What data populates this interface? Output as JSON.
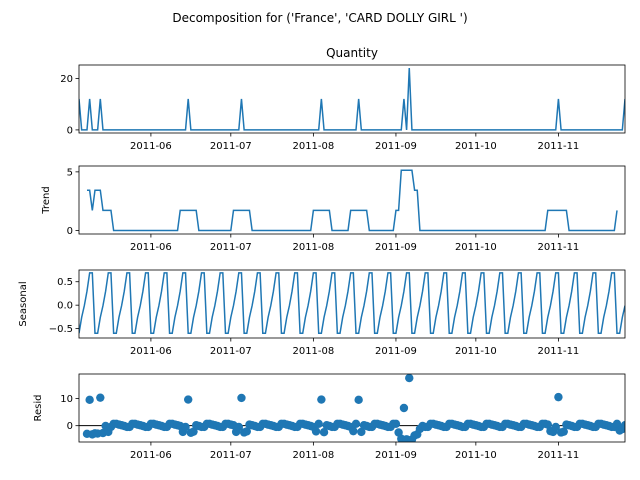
{
  "figure": {
    "suptitle": "Decomposition for ('France', 'CARD DOLLY GIRL ')"
  },
  "chart_data": [
    {
      "type": "line",
      "title": "Quantity",
      "ylabel": "",
      "xlim": [
        "2011-05-05",
        "2011-11-26"
      ],
      "ylim": [
        -1.2,
        25.2
      ],
      "xticks": [
        "2011-06-01",
        "2011-07-01",
        "2011-08-01",
        "2011-09-01",
        "2011-10-01",
        "2011-11-01"
      ],
      "xtick_labels": [
        "2011-06",
        "2011-07",
        "2011-08",
        "2011-09",
        "2011-10",
        "2011-11"
      ],
      "yticks": [
        0,
        20
      ],
      "ytick_labels": [
        "0",
        "20"
      ],
      "color": "#1f77b4",
      "baseline": 0,
      "spikes": [
        {
          "x": "2011-05-05",
          "y": 12
        },
        {
          "x": "2011-05-09",
          "y": 12
        },
        {
          "x": "2011-05-13",
          "y": 12
        },
        {
          "x": "2011-06-15",
          "y": 12
        },
        {
          "x": "2011-07-05",
          "y": 12
        },
        {
          "x": "2011-08-04",
          "y": 12
        },
        {
          "x": "2011-08-18",
          "y": 12
        },
        {
          "x": "2011-09-04",
          "y": 12
        },
        {
          "x": "2011-09-06",
          "y": 24
        },
        {
          "x": "2011-11-01",
          "y": 12
        },
        {
          "x": "2011-11-26",
          "y": 12
        }
      ]
    },
    {
      "type": "line",
      "title": "",
      "ylabel": "Trend",
      "xlim": [
        "2011-05-05",
        "2011-11-26"
      ],
      "ylim": [
        -0.3,
        5.5
      ],
      "xticks": [
        "2011-06-01",
        "2011-07-01",
        "2011-08-01",
        "2011-09-01",
        "2011-10-01",
        "2011-11-01"
      ],
      "xtick_labels": [
        "2011-06",
        "2011-07",
        "2011-08",
        "2011-09",
        "2011-10",
        "2011-11"
      ],
      "yticks": [
        0,
        5
      ],
      "ytick_labels": [
        "0",
        "5"
      ],
      "color": "#1f77b4",
      "points": [
        [
          "2011-05-08",
          3.43
        ],
        [
          "2011-05-09",
          3.43
        ],
        [
          "2011-05-10",
          1.71
        ],
        [
          "2011-05-11",
          3.43
        ],
        [
          "2011-05-13",
          3.43
        ],
        [
          "2011-05-14",
          1.71
        ],
        [
          "2011-05-17",
          1.71
        ],
        [
          "2011-05-18",
          0
        ],
        [
          "2011-06-11",
          0
        ],
        [
          "2011-06-12",
          1.71
        ],
        [
          "2011-06-18",
          1.71
        ],
        [
          "2011-06-19",
          0
        ],
        [
          "2011-07-01",
          0
        ],
        [
          "2011-07-02",
          1.71
        ],
        [
          "2011-07-08",
          1.71
        ],
        [
          "2011-07-09",
          0
        ],
        [
          "2011-07-31",
          0
        ],
        [
          "2011-08-01",
          1.71
        ],
        [
          "2011-08-07",
          1.71
        ],
        [
          "2011-08-08",
          0
        ],
        [
          "2011-08-14",
          0
        ],
        [
          "2011-08-15",
          1.71
        ],
        [
          "2011-08-21",
          1.71
        ],
        [
          "2011-08-22",
          0
        ],
        [
          "2011-08-31",
          0
        ],
        [
          "2011-09-01",
          1.71
        ],
        [
          "2011-09-02",
          1.71
        ],
        [
          "2011-09-03",
          5.14
        ],
        [
          "2011-09-07",
          5.14
        ],
        [
          "2011-09-08",
          3.43
        ],
        [
          "2011-09-09",
          3.43
        ],
        [
          "2011-09-10",
          0
        ],
        [
          "2011-10-27",
          0
        ],
        [
          "2011-10-28",
          1.71
        ],
        [
          "2011-11-04",
          1.71
        ],
        [
          "2011-11-05",
          0
        ],
        [
          "2011-11-22",
          0
        ],
        [
          "2011-11-23",
          1.71
        ]
      ]
    },
    {
      "type": "line",
      "title": "",
      "ylabel": "Seasonal",
      "xlim": [
        "2011-05-05",
        "2011-11-26"
      ],
      "ylim": [
        -0.7,
        0.75
      ],
      "xticks": [
        "2011-06-01",
        "2011-07-01",
        "2011-08-01",
        "2011-09-01",
        "2011-10-01",
        "2011-11-01"
      ],
      "xtick_labels": [
        "2011-06",
        "2011-07",
        "2011-08",
        "2011-09",
        "2011-10",
        "2011-11"
      ],
      "yticks": [
        0.5,
        0.0,
        -0.5
      ],
      "ytick_labels": [
        "0.5",
        "0.0",
        "−0.5"
      ],
      "color": "#1f77b4",
      "period_days": 7,
      "first_peak": "2011-05-09",
      "pattern": [
        0.69,
        0.69,
        -0.6,
        -0.6,
        -0.26,
        -0.01,
        0.3
      ]
    },
    {
      "type": "scatter",
      "title": "",
      "ylabel": "Resid",
      "xlim": [
        "2011-05-05",
        "2011-11-26"
      ],
      "ylim": [
        -6,
        19
      ],
      "xticks": [
        "2011-06-01",
        "2011-07-01",
        "2011-08-01",
        "2011-09-01",
        "2011-10-01",
        "2011-11-01"
      ],
      "xtick_labels": [
        "2011-06",
        "2011-07",
        "2011-08",
        "2011-09",
        "2011-10",
        "2011-11"
      ],
      "yticks": [
        0,
        10
      ],
      "ytick_labels": [
        "0",
        "10"
      ],
      "color": "#1f77b4",
      "zero_line": true,
      "outliers": [
        [
          "2011-05-09",
          9.5
        ],
        [
          "2011-05-13",
          10.3
        ],
        [
          "2011-06-15",
          9.6
        ],
        [
          "2011-07-05",
          10.2
        ],
        [
          "2011-08-04",
          9.6
        ],
        [
          "2011-08-18",
          9.5
        ],
        [
          "2011-09-04",
          6.5
        ],
        [
          "2011-09-06",
          17.5
        ],
        [
          "2011-11-01",
          10.5
        ]
      ],
      "dips": [
        [
          "2011-05-08",
          -3.0
        ],
        [
          "2011-05-10",
          -3.2
        ],
        [
          "2011-05-11",
          -2.8
        ],
        [
          "2011-05-12",
          -2.9
        ],
        [
          "2011-05-14",
          -2.7
        ],
        [
          "2011-05-16",
          -2.3
        ],
        [
          "2011-06-13",
          -2.3
        ],
        [
          "2011-06-16",
          -2.6
        ],
        [
          "2011-06-17",
          -2.2
        ],
        [
          "2011-07-03",
          -2.3
        ],
        [
          "2011-07-06",
          -2.5
        ],
        [
          "2011-07-07",
          -2.1
        ],
        [
          "2011-08-02",
          -2.1
        ],
        [
          "2011-08-05",
          -2.4
        ],
        [
          "2011-08-16",
          -2.0
        ],
        [
          "2011-08-19",
          -2.3
        ],
        [
          "2011-09-02",
          -2.5
        ],
        [
          "2011-09-03",
          -4.8
        ],
        [
          "2011-09-05",
          -5.0
        ],
        [
          "2011-09-07",
          -5.1
        ],
        [
          "2011-09-08",
          -3.6
        ],
        [
          "2011-09-09",
          -3.2
        ],
        [
          "2011-09-10",
          -1.2
        ],
        [
          "2011-10-29",
          -2.0
        ],
        [
          "2011-10-30",
          -2.3
        ],
        [
          "2011-11-02",
          -2.5
        ],
        [
          "2011-11-03",
          -2.2
        ],
        [
          "2011-11-24",
          -1.8
        ],
        [
          "2011-11-25",
          -1.2
        ]
      ],
      "baseline_pattern": [
        0.69,
        0.69,
        -0.6,
        -0.6,
        -0.26,
        -0.01,
        0.3
      ]
    }
  ]
}
